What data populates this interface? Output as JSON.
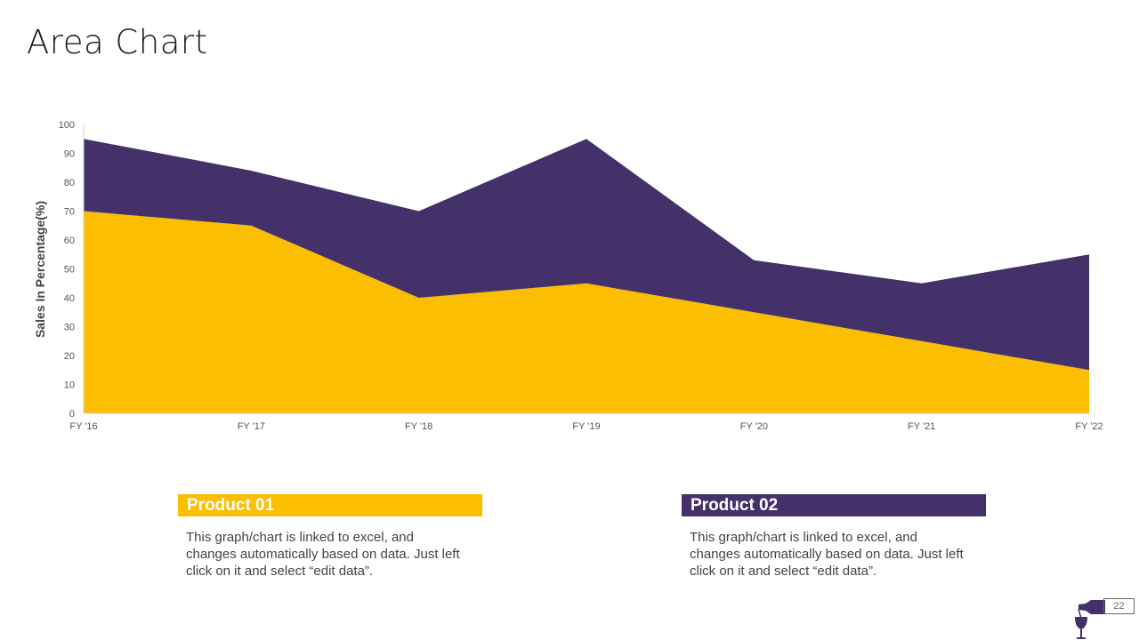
{
  "title": "Area Chart",
  "chart_data": {
    "type": "area",
    "stacked": true,
    "categories": [
      "FY '16",
      "FY '17",
      "FY '18",
      "FY '19",
      "FY '20",
      "FY '21",
      "FY '22"
    ],
    "series": [
      {
        "name": "Product 01",
        "color": "#FBBE00",
        "values": [
          70,
          65,
          40,
          45,
          35,
          25,
          15
        ]
      },
      {
        "name": "Product 02",
        "color": "#45316A",
        "values": [
          25,
          19,
          30,
          50,
          18,
          20,
          40
        ]
      }
    ],
    "ylabel": "Sales In Percentage(%)",
    "xlabel": "",
    "ylim": [
      0,
      100
    ],
    "yticks": [
      0,
      10,
      20,
      30,
      40,
      50,
      60,
      70,
      80,
      90,
      100
    ],
    "grid": false
  },
  "products": [
    {
      "label": "Product 01",
      "color": "#FBBE00",
      "text": "This graph/chart is linked to excel, and changes automatically based on data. Just left click on it and select “edit data”."
    },
    {
      "label": "Product 02",
      "color": "#45316A",
      "text": "This graph/chart is linked to excel, and changes automatically based on data. Just left click on it and select “edit data”."
    }
  ],
  "page_number": "22",
  "logo_icon": "wine-bottle-glass-icon"
}
